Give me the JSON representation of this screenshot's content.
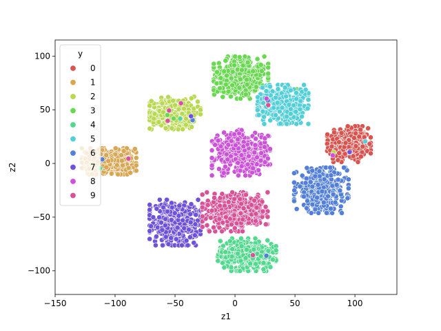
{
  "chart_data": {
    "type": "scatter",
    "title": "",
    "xlabel": "z1",
    "ylabel": "z2",
    "xlim": [
      -150,
      135
    ],
    "ylim": [
      -122,
      115
    ],
    "x_ticks": [
      -150,
      -100,
      -50,
      0,
      50,
      100
    ],
    "y_ticks": [
      -100,
      -50,
      0,
      50,
      100
    ],
    "x_tick_labels": [
      "−150",
      "−100",
      "−50",
      "0",
      "50",
      "100"
    ],
    "y_tick_labels": [
      "−100",
      "−50",
      "0",
      "50",
      "100"
    ],
    "grid": false,
    "legend": {
      "title": "y",
      "placement": "upper-left",
      "entries": [
        "0",
        "1",
        "2",
        "3",
        "4",
        "5",
        "6",
        "7",
        "8",
        "9"
      ]
    },
    "colors": [
      "#d9534f",
      "#d9a753",
      "#bad952",
      "#6ad952",
      "#52d98e",
      "#52cfd9",
      "#527fd9",
      "#6e52d9",
      "#cc52d9",
      "#d95297"
    ],
    "series": [
      {
        "name": "0",
        "center": [
          95,
          18
        ],
        "spread": [
          12,
          11
        ]
      },
      {
        "name": "1",
        "center": [
          -105,
          2
        ],
        "spread": [
          15,
          8
        ]
      },
      {
        "name": "2",
        "center": [
          -50,
          47
        ],
        "spread": [
          14,
          10
        ]
      },
      {
        "name": "3",
        "center": [
          5,
          80
        ],
        "spread": [
          15,
          13
        ]
      },
      {
        "name": "4",
        "center": [
          10,
          -85
        ],
        "spread": [
          16,
          10
        ]
      },
      {
        "name": "5",
        "center": [
          40,
          55
        ],
        "spread": [
          14,
          12
        ]
      },
      {
        "name": "6",
        "center": [
          72,
          -25
        ],
        "spread": [
          15,
          14
        ]
      },
      {
        "name": "7",
        "center": [
          -50,
          -55
        ],
        "spread": [
          14,
          14
        ]
      },
      {
        "name": "8",
        "center": [
          5,
          10
        ],
        "spread": [
          16,
          14
        ]
      },
      {
        "name": "9",
        "center": [
          0,
          -45
        ],
        "spread": [
          18,
          12
        ]
      }
    ],
    "points_per_series": 420
  }
}
